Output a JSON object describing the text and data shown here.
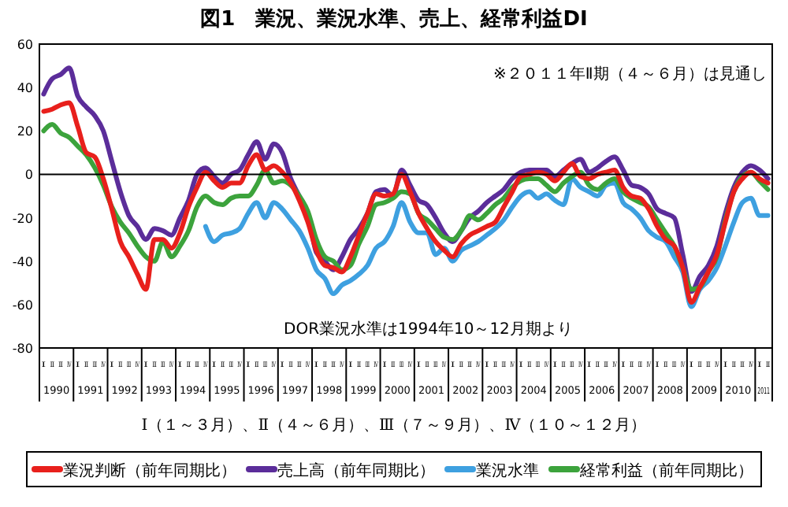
{
  "chart_data": {
    "type": "line",
    "title": "図1　業況、業況水準、売上、経常利益DI",
    "xlabel": "Ⅰ（１～３月）、Ⅱ（４～６月）、Ⅲ（７～９月）、Ⅳ（１０～１２月）",
    "annotations": [
      "※２０１１年Ⅱ期（４～６月）は見通し",
      "DOR業況水準は1994年10～12月期より"
    ],
    "categories": [
      "Ⅰ",
      "Ⅱ",
      "Ⅲ",
      "Ⅳ",
      "Ⅰ",
      "Ⅱ",
      "Ⅲ",
      "Ⅳ",
      "Ⅰ",
      "Ⅱ",
      "Ⅲ",
      "Ⅳ",
      "Ⅰ",
      "Ⅱ",
      "Ⅲ",
      "Ⅳ",
      "Ⅰ",
      "Ⅱ",
      "Ⅲ",
      "Ⅳ",
      "Ⅰ",
      "Ⅱ",
      "Ⅲ",
      "Ⅳ",
      "Ⅰ",
      "Ⅱ",
      "Ⅲ",
      "Ⅳ",
      "Ⅰ",
      "Ⅱ",
      "Ⅲ",
      "Ⅳ",
      "Ⅰ",
      "Ⅱ",
      "Ⅲ",
      "Ⅳ",
      "Ⅰ",
      "Ⅱ",
      "Ⅲ",
      "Ⅳ",
      "Ⅰ",
      "Ⅱ",
      "Ⅲ",
      "Ⅳ",
      "Ⅰ",
      "Ⅱ",
      "Ⅲ",
      "Ⅳ",
      "Ⅰ",
      "Ⅱ",
      "Ⅲ",
      "Ⅳ",
      "Ⅰ",
      "Ⅱ",
      "Ⅲ",
      "Ⅳ",
      "Ⅰ",
      "Ⅱ",
      "Ⅲ",
      "Ⅳ",
      "Ⅰ",
      "Ⅱ",
      "Ⅲ",
      "Ⅳ",
      "Ⅰ",
      "Ⅱ",
      "Ⅲ",
      "Ⅳ",
      "Ⅰ",
      "Ⅱ",
      "Ⅲ",
      "Ⅳ",
      "Ⅰ",
      "Ⅱ",
      "Ⅲ",
      "Ⅳ",
      "Ⅰ",
      "Ⅱ",
      "Ⅲ",
      "Ⅳ",
      "Ⅰ",
      "Ⅱ",
      "Ⅲ",
      "Ⅳ",
      "Ⅰ",
      "Ⅱ"
    ],
    "series": [
      {
        "name": "業況判断（前年同期比）",
        "color": "#e8201c",
        "values": [
          29,
          30,
          32,
          33,
          22,
          10,
          8,
          -2,
          -16,
          -31,
          -38,
          -46,
          -53,
          -30,
          -30,
          -34,
          -27,
          -15,
          -6,
          1,
          -3,
          -6,
          -4,
          -4,
          4,
          9,
          2,
          4,
          1,
          -4,
          -12,
          -22,
          -35,
          -42,
          -43,
          -45,
          -38,
          -28,
          -18,
          -9,
          -10,
          -9,
          0,
          -8,
          -18,
          -25,
          -31,
          -35,
          -38,
          -32,
          -28,
          -26,
          -24,
          -22,
          -15,
          -8,
          -1,
          0,
          1,
          0,
          -3,
          1,
          5,
          -1,
          -2,
          0,
          1,
          2,
          -6,
          -10,
          -11,
          -16,
          -24,
          -30,
          -33,
          -43,
          -59,
          -52,
          -45,
          -37,
          -22,
          -8,
          -2,
          1,
          -2,
          -4
        ]
      },
      {
        "name": "売上高（前年同期比）",
        "color": "#5b2d9a",
        "values": [
          37,
          44,
          46,
          49,
          36,
          31,
          27,
          20,
          6,
          -8,
          -19,
          -24,
          -30,
          -25,
          -26,
          -28,
          -20,
          -12,
          0,
          3,
          -1,
          -4,
          0,
          2,
          9,
          15,
          7,
          14,
          10,
          -2,
          -10,
          -18,
          -36,
          -40,
          -44,
          -38,
          -30,
          -25,
          -18,
          -8,
          -7,
          -10,
          2,
          -5,
          -12,
          -14,
          -20,
          -27,
          -31,
          -26,
          -20,
          -17,
          -13,
          -10,
          -7,
          -2,
          1,
          2,
          2,
          2,
          -1,
          2,
          5,
          7,
          1,
          3,
          6,
          8,
          2,
          -5,
          -6,
          -9,
          -16,
          -18,
          -20,
          -37,
          -54,
          -47,
          -42,
          -33,
          -18,
          -6,
          1,
          4,
          2,
          -2
        ]
      },
      {
        "name": "業況水準",
        "color": "#3ea0e0",
        "values": [
          null,
          null,
          null,
          null,
          null,
          null,
          null,
          null,
          null,
          null,
          null,
          null,
          null,
          null,
          null,
          null,
          null,
          null,
          null,
          -24,
          -31,
          -28,
          -27,
          -25,
          -18,
          -13,
          -20,
          -13,
          -16,
          -21,
          -26,
          -34,
          -44,
          -48,
          -55,
          -51,
          -49,
          -46,
          -42,
          -34,
          -31,
          -24,
          -13,
          -22,
          -27,
          -27,
          -37,
          -34,
          -40,
          -35,
          -33,
          -31,
          -28,
          -25,
          -21,
          -15,
          -10,
          -8,
          -11,
          -9,
          -12,
          -14,
          -2,
          -6,
          -8,
          -10,
          -5,
          -4,
          -13,
          -16,
          -20,
          -26,
          -29,
          -31,
          -38,
          -45,
          -61,
          -53,
          -49,
          -43,
          -33,
          -22,
          -13,
          -11,
          -19,
          -19
        ]
      },
      {
        "name": "経常利益（前年同期比）",
        "color": "#3ca33c",
        "values": [
          20,
          23,
          19,
          17,
          13,
          9,
          3,
          -5,
          -15,
          -22,
          -27,
          -33,
          -38,
          -40,
          -31,
          -38,
          -33,
          -26,
          -15,
          -10,
          -13,
          -14,
          -11,
          -10,
          -10,
          -5,
          2,
          -4,
          -3,
          -5,
          -10,
          -17,
          -30,
          -38,
          -40,
          -44,
          -42,
          -32,
          -24,
          -14,
          -13,
          -11,
          -8,
          -9,
          -18,
          -21,
          -25,
          -29,
          -30,
          -26,
          -19,
          -21,
          -18,
          -14,
          -11,
          -6,
          -3,
          -2,
          -2,
          -5,
          -8,
          -4,
          -1,
          1,
          -5,
          -7,
          -4,
          -2,
          -8,
          -11,
          -13,
          -15,
          -21,
          -27,
          -33,
          -43,
          -53,
          -52,
          -45,
          -38,
          -21,
          -8,
          -1,
          1,
          -3,
          -7
        ]
      }
    ],
    "x2lim": [
      1990,
      2011.5
    ],
    "x2ticks": [
      {
        "value": 1990.5,
        "label": "1990"
      },
      {
        "value": 1991.5,
        "label": "1991"
      },
      {
        "value": 1992.5,
        "label": "1992"
      },
      {
        "value": 1993.5,
        "label": "1993"
      },
      {
        "value": 1994.5,
        "label": "1994"
      },
      {
        "value": 1995.5,
        "label": "1995"
      },
      {
        "value": 1996.5,
        "label": "1996"
      },
      {
        "value": 1997.5,
        "label": "1997"
      },
      {
        "value": 1998.5,
        "label": "1998"
      },
      {
        "value": 1999.5,
        "label": "1999"
      },
      {
        "value": 2000.5,
        "label": "2000"
      },
      {
        "value": 2001.5,
        "label": "2001"
      },
      {
        "value": 2002.5,
        "label": "2002"
      },
      {
        "value": 2003.5,
        "label": "2003"
      },
      {
        "value": 2004.5,
        "label": "2004"
      },
      {
        "value": 2005.5,
        "label": "2005"
      },
      {
        "value": 2006.5,
        "label": "2006"
      },
      {
        "value": 2007.5,
        "label": "2007"
      },
      {
        "value": 2008.5,
        "label": "2008"
      },
      {
        "value": 2009.5,
        "label": "2009"
      },
      {
        "value": 2010.5,
        "label": "2010"
      },
      {
        "value": 2011.25,
        "label": "2011"
      }
    ],
    "ylim": [
      -80,
      60
    ],
    "yticks": [
      -80,
      -60,
      -40,
      -20,
      0,
      20,
      40,
      60
    ],
    "ref_lines": [
      {
        "axis": "y",
        "value": 0,
        "color": "#000000"
      }
    ],
    "legend": "bottom",
    "line_style": "solid",
    "marker": "none"
  }
}
